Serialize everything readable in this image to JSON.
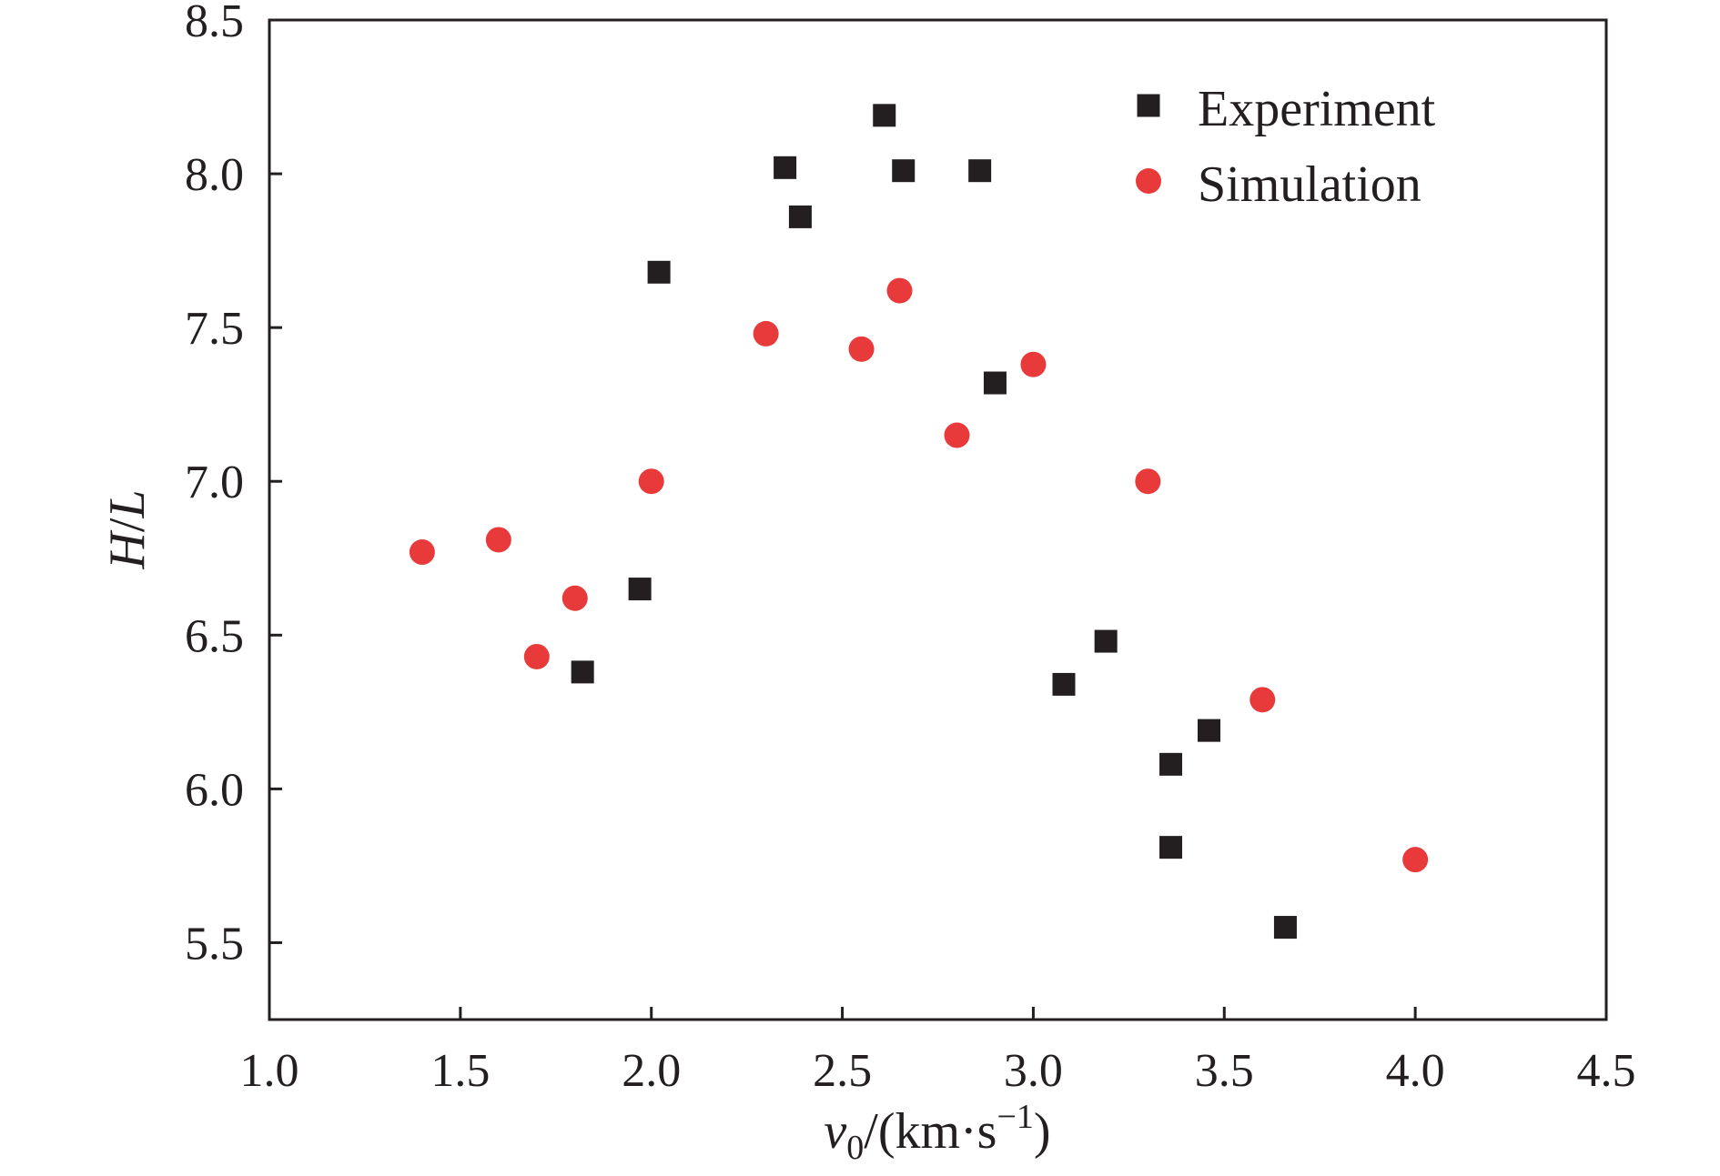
{
  "chart_data": {
    "type": "scatter",
    "xlabel": {
      "base": "v",
      "sub": "0",
      "unit_prefix": "/(km·s",
      "unit_sup": "−1",
      "unit_suffix": ")"
    },
    "ylabel": {
      "part1": "H",
      "slash": "/",
      "part2": "L"
    },
    "xlim": [
      1.0,
      4.5
    ],
    "ylim": [
      5.25,
      8.5
    ],
    "xticks": [
      "1.0",
      "1.5",
      "2.0",
      "2.5",
      "3.0",
      "3.5",
      "4.0",
      "4.5"
    ],
    "yticks": [
      "5.5",
      "6.0",
      "6.5",
      "7.0",
      "7.5",
      "8.0",
      "8.5"
    ],
    "grid": false,
    "legend_position": "top-right",
    "series": [
      {
        "name": "Experiment",
        "marker": "square",
        "color": "#231f20",
        "points": [
          {
            "x": 1.82,
            "y": 6.38
          },
          {
            "x": 1.97,
            "y": 6.65
          },
          {
            "x": 2.02,
            "y": 7.68
          },
          {
            "x": 2.35,
            "y": 8.02
          },
          {
            "x": 2.39,
            "y": 7.86
          },
          {
            "x": 2.61,
            "y": 8.19
          },
          {
            "x": 2.66,
            "y": 8.01
          },
          {
            "x": 2.86,
            "y": 8.01
          },
          {
            "x": 2.9,
            "y": 7.32
          },
          {
            "x": 3.08,
            "y": 6.34
          },
          {
            "x": 3.19,
            "y": 6.48
          },
          {
            "x": 3.36,
            "y": 6.08
          },
          {
            "x": 3.36,
            "y": 5.81
          },
          {
            "x": 3.46,
            "y": 6.19
          },
          {
            "x": 3.66,
            "y": 5.55
          }
        ]
      },
      {
        "name": "Simulation",
        "marker": "circle",
        "color": "#e83a3a",
        "points": [
          {
            "x": 1.4,
            "y": 6.77
          },
          {
            "x": 1.6,
            "y": 6.81
          },
          {
            "x": 1.7,
            "y": 6.43
          },
          {
            "x": 1.8,
            "y": 6.62
          },
          {
            "x": 2.0,
            "y": 7.0
          },
          {
            "x": 2.3,
            "y": 7.48
          },
          {
            "x": 2.55,
            "y": 7.43
          },
          {
            "x": 2.65,
            "y": 7.62
          },
          {
            "x": 2.8,
            "y": 7.15
          },
          {
            "x": 3.0,
            "y": 7.38
          },
          {
            "x": 3.3,
            "y": 7.0
          },
          {
            "x": 3.6,
            "y": 6.29
          },
          {
            "x": 4.0,
            "y": 5.77
          }
        ]
      }
    ]
  }
}
